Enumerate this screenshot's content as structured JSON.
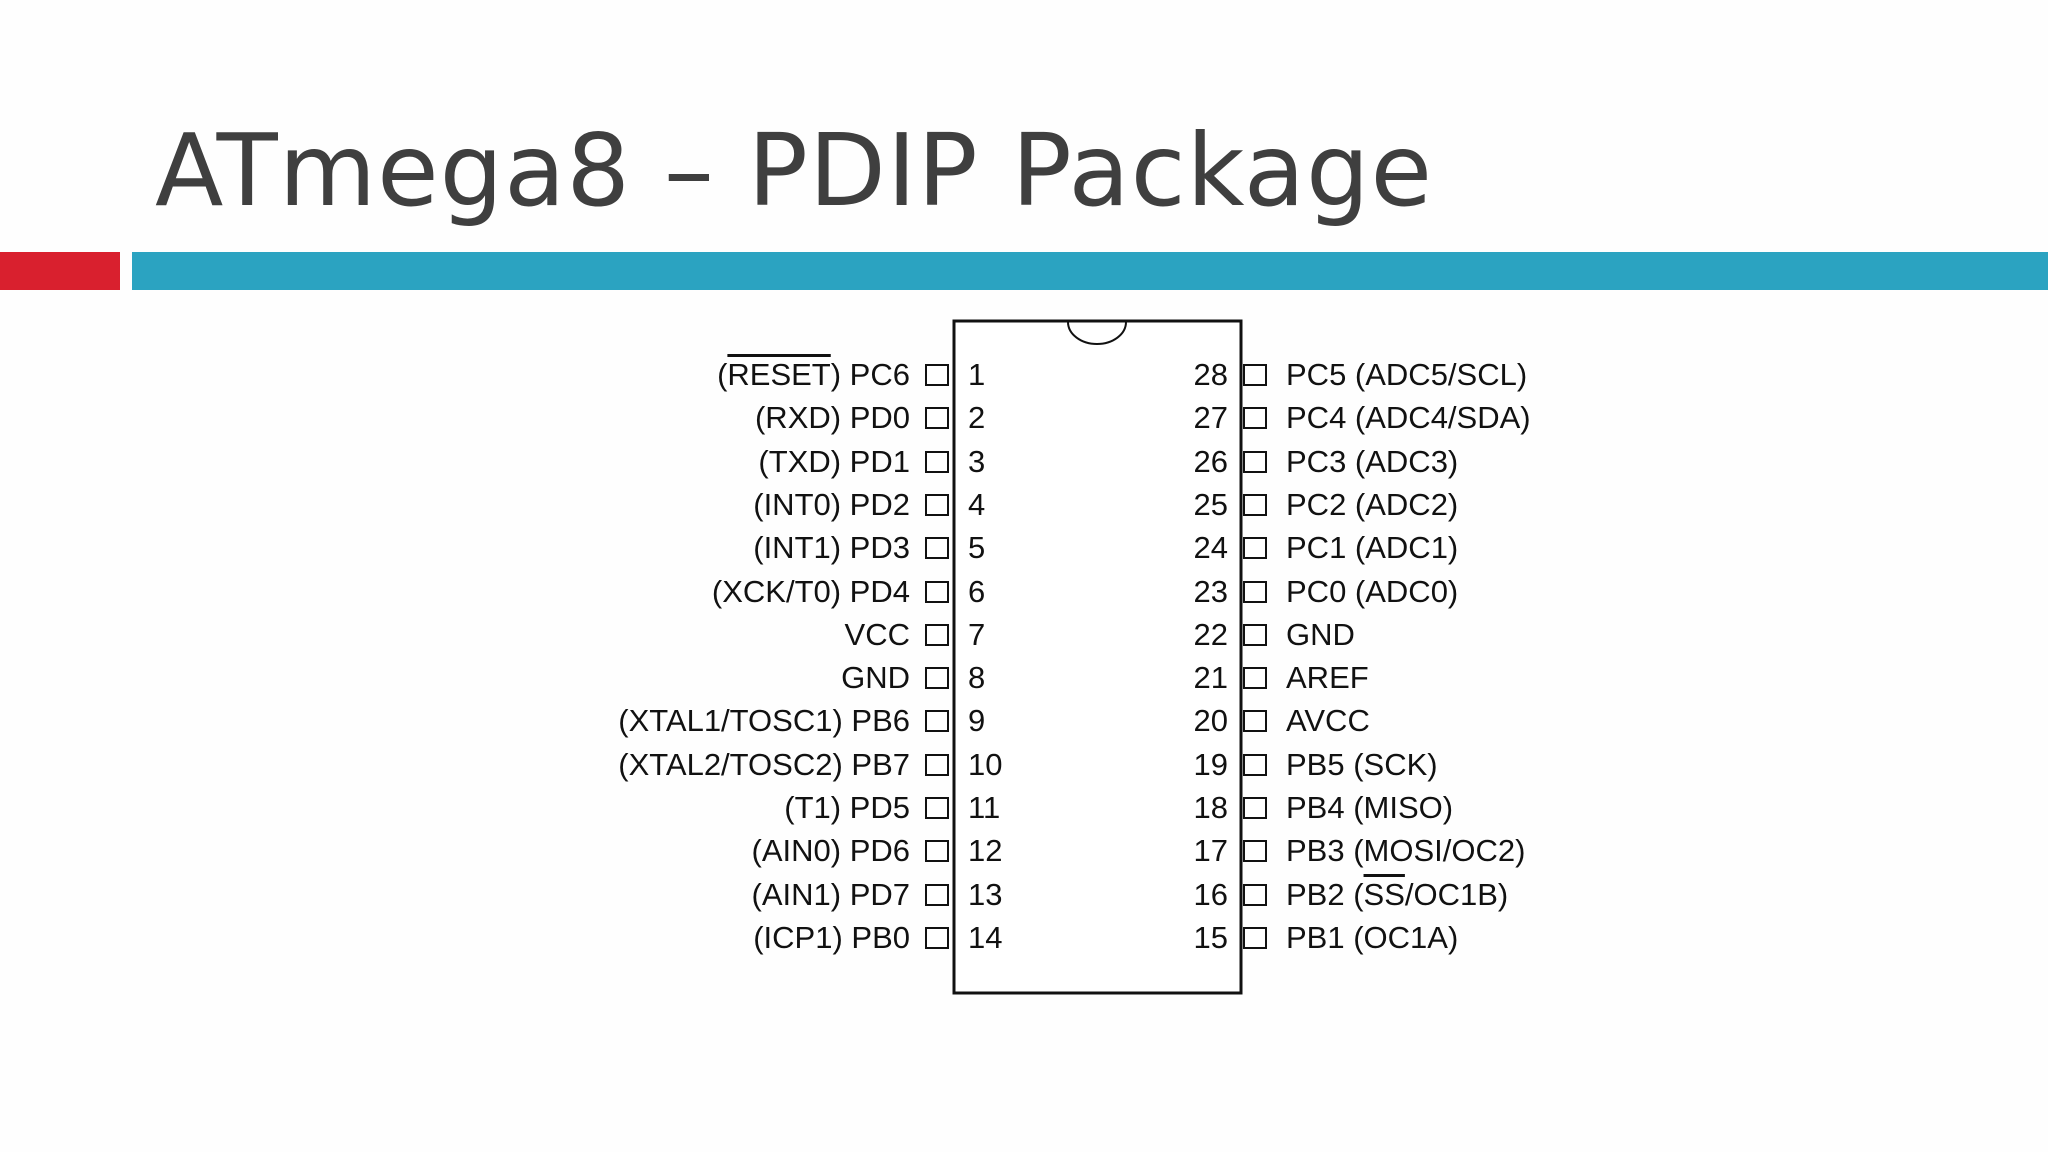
{
  "title": "ATmega8 – PDIP Package",
  "pins_left": [
    {
      "number": 1,
      "label": [
        {
          "text": "("
        },
        {
          "text": "RESET",
          "overline": true
        },
        {
          "text": ") PC6"
        }
      ]
    },
    {
      "number": 2,
      "label": [
        {
          "text": "(RXD) PD0"
        }
      ]
    },
    {
      "number": 3,
      "label": [
        {
          "text": "(TXD) PD1"
        }
      ]
    },
    {
      "number": 4,
      "label": [
        {
          "text": "(INT0) PD2"
        }
      ]
    },
    {
      "number": 5,
      "label": [
        {
          "text": "(INT1) PD3"
        }
      ]
    },
    {
      "number": 6,
      "label": [
        {
          "text": "(XCK/T0) PD4"
        }
      ]
    },
    {
      "number": 7,
      "label": [
        {
          "text": "VCC"
        }
      ]
    },
    {
      "number": 8,
      "label": [
        {
          "text": "GND"
        }
      ]
    },
    {
      "number": 9,
      "label": [
        {
          "text": "(XTAL1/TOSC1) PB6"
        }
      ]
    },
    {
      "number": 10,
      "label": [
        {
          "text": "(XTAL2/TOSC2) PB7"
        }
      ]
    },
    {
      "number": 11,
      "label": [
        {
          "text": "(T1) PD5"
        }
      ]
    },
    {
      "number": 12,
      "label": [
        {
          "text": "(AIN0) PD6"
        }
      ]
    },
    {
      "number": 13,
      "label": [
        {
          "text": "(AIN1) PD7"
        }
      ]
    },
    {
      "number": 14,
      "label": [
        {
          "text": "(ICP1) PB0"
        }
      ]
    }
  ],
  "pins_right": [
    {
      "number": 28,
      "label": [
        {
          "text": "PC5 (ADC5/SCL)"
        }
      ]
    },
    {
      "number": 27,
      "label": [
        {
          "text": "PC4 (ADC4/SDA)"
        }
      ]
    },
    {
      "number": 26,
      "label": [
        {
          "text": "PC3 (ADC3)"
        }
      ]
    },
    {
      "number": 25,
      "label": [
        {
          "text": "PC2 (ADC2)"
        }
      ]
    },
    {
      "number": 24,
      "label": [
        {
          "text": "PC1 (ADC1)"
        }
      ]
    },
    {
      "number": 23,
      "label": [
        {
          "text": "PC0 (ADC0)"
        }
      ]
    },
    {
      "number": 22,
      "label": [
        {
          "text": "GND"
        }
      ]
    },
    {
      "number": 21,
      "label": [
        {
          "text": "AREF"
        }
      ]
    },
    {
      "number": 20,
      "label": [
        {
          "text": "AVCC"
        }
      ]
    },
    {
      "number": 19,
      "label": [
        {
          "text": "PB5 (SCK)"
        }
      ]
    },
    {
      "number": 18,
      "label": [
        {
          "text": "PB4 (MISO)"
        }
      ]
    },
    {
      "number": 17,
      "label": [
        {
          "text": "PB3 (MOSI/OC2)"
        }
      ]
    },
    {
      "number": 16,
      "label": [
        {
          "text": "PB2 ("
        },
        {
          "text": "SS",
          "overline": true
        },
        {
          "text": "/OC1B)"
        }
      ]
    },
    {
      "number": 15,
      "label": [
        {
          "text": "PB1 (OC1A)"
        }
      ]
    }
  ]
}
